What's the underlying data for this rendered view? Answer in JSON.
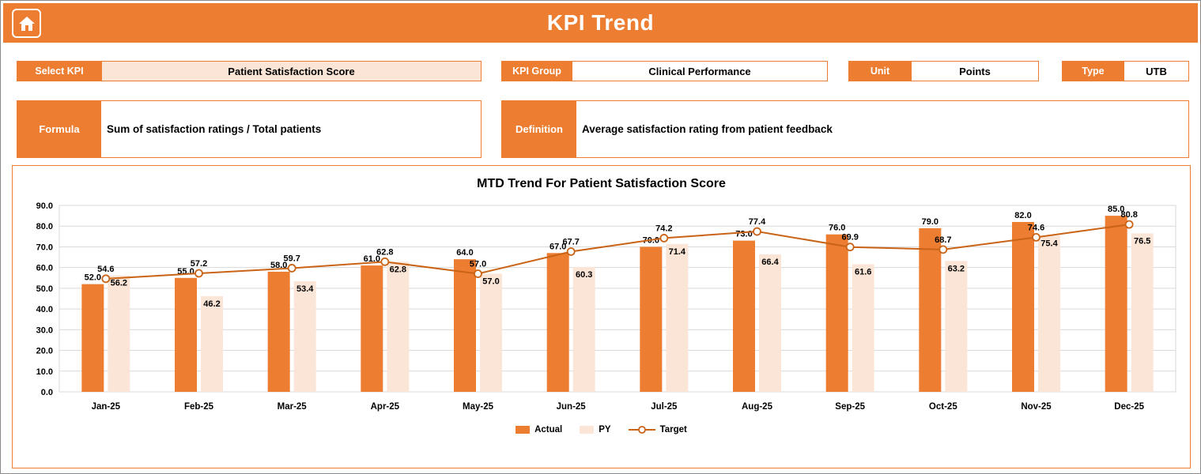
{
  "header": {
    "title": "KPI Trend"
  },
  "filters": {
    "select_kpi": {
      "label": "Select KPI",
      "value": "Patient Satisfaction Score"
    },
    "kpi_group": {
      "label": "KPI Group",
      "value": "Clinical Performance"
    },
    "unit": {
      "label": "Unit",
      "value": "Points"
    },
    "type": {
      "label": "Type",
      "value": "UTB"
    }
  },
  "formula": {
    "label": "Formula",
    "value": "Sum of satisfaction ratings / Total patients"
  },
  "definition": {
    "label": "Definition",
    "value": "Average satisfaction rating from patient feedback"
  },
  "chart_data": {
    "type": "bar",
    "title": "MTD Trend For Patient Satisfaction Score",
    "categories": [
      "Jan-25",
      "Feb-25",
      "Mar-25",
      "Apr-25",
      "May-25",
      "Jun-25",
      "Jul-25",
      "Aug-25",
      "Sep-25",
      "Oct-25",
      "Nov-25",
      "Dec-25"
    ],
    "series": [
      {
        "name": "Actual",
        "kind": "bar",
        "color": "#ED7D31",
        "values": [
          52.0,
          55.0,
          58.0,
          61.0,
          64.0,
          67.0,
          70.0,
          73.0,
          76.0,
          79.0,
          82.0,
          85.0
        ]
      },
      {
        "name": "PY",
        "kind": "bar",
        "color": "#FBE5D6",
        "values": [
          56.2,
          46.2,
          53.4,
          62.8,
          57.0,
          60.3,
          71.4,
          66.4,
          61.6,
          63.2,
          75.4,
          76.5
        ]
      },
      {
        "name": "Target",
        "kind": "line",
        "color": "#C96316",
        "values": [
          54.6,
          57.2,
          59.7,
          62.8,
          57.0,
          67.7,
          74.2,
          77.4,
          69.9,
          68.7,
          74.6,
          80.8
        ]
      }
    ],
    "ylim": [
      0,
      90
    ],
    "ytick_step": 10,
    "grid": true,
    "legend_position": "bottom"
  },
  "colors": {
    "accent": "#ED7D31",
    "accent_light": "#FBE5D6",
    "line": "#C96316",
    "grid": "#D9D9D9"
  }
}
